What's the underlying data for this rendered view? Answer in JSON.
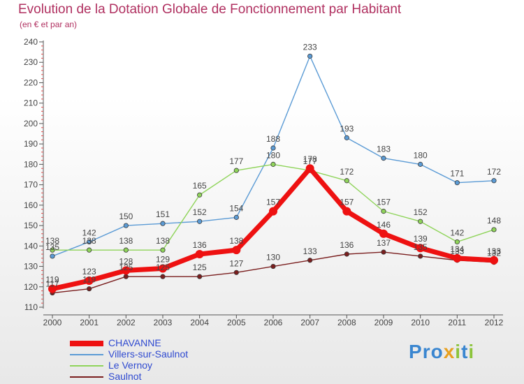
{
  "title": "Evolution de la Dotation Globale de Fonctionnement par Habitant",
  "subtitle": "(en € et par an)",
  "logo": {
    "text": "Proxiti",
    "colors": [
      "#3a86d0",
      "#e8a020",
      "#8cc43c"
    ]
  },
  "chart_data": {
    "type": "line",
    "title": "Evolution de la Dotation Globale de Fonctionnement par Habitant",
    "subtitle": "(en € et par an)",
    "xlabel": "",
    "ylabel": "",
    "categories": [
      "2000",
      "2001",
      "2002",
      "2003",
      "2004",
      "2005",
      "2006",
      "2007",
      "2008",
      "2009",
      "2010",
      "2011",
      "2012"
    ],
    "ylim": [
      110,
      240
    ],
    "yticks": [
      110,
      120,
      130,
      140,
      150,
      160,
      170,
      180,
      190,
      200,
      210,
      220,
      230,
      240
    ],
    "grid": false,
    "legend_position": "bottom-left",
    "series": [
      {
        "name": "Villers-sur-Saulnot",
        "color": "#5b9bd5",
        "values": [
          135,
          142,
          150,
          151,
          152,
          154,
          188,
          233,
          193,
          183,
          180,
          171,
          172
        ]
      },
      {
        "name": "Le Vernoy",
        "color": "#8fd45a",
        "values": [
          138,
          138,
          138,
          138,
          165,
          177,
          180,
          177,
          172,
          157,
          152,
          142,
          148
        ]
      },
      {
        "name": "Saulnot",
        "color": "#7a1e1e",
        "values": [
          117,
          119,
          125,
          125,
          125,
          127,
          130,
          133,
          136,
          137,
          135,
          133,
          132
        ]
      },
      {
        "name": "CHAVANNE",
        "color": "#ee1111",
        "values": [
          119,
          123,
          128,
          129,
          136,
          138,
          157,
          178,
          157,
          146,
          139,
          134,
          133
        ]
      }
    ],
    "legend": [
      "CHAVANNE",
      "Villers-sur-Saulnot",
      "Le Vernoy",
      "Saulnot"
    ]
  }
}
